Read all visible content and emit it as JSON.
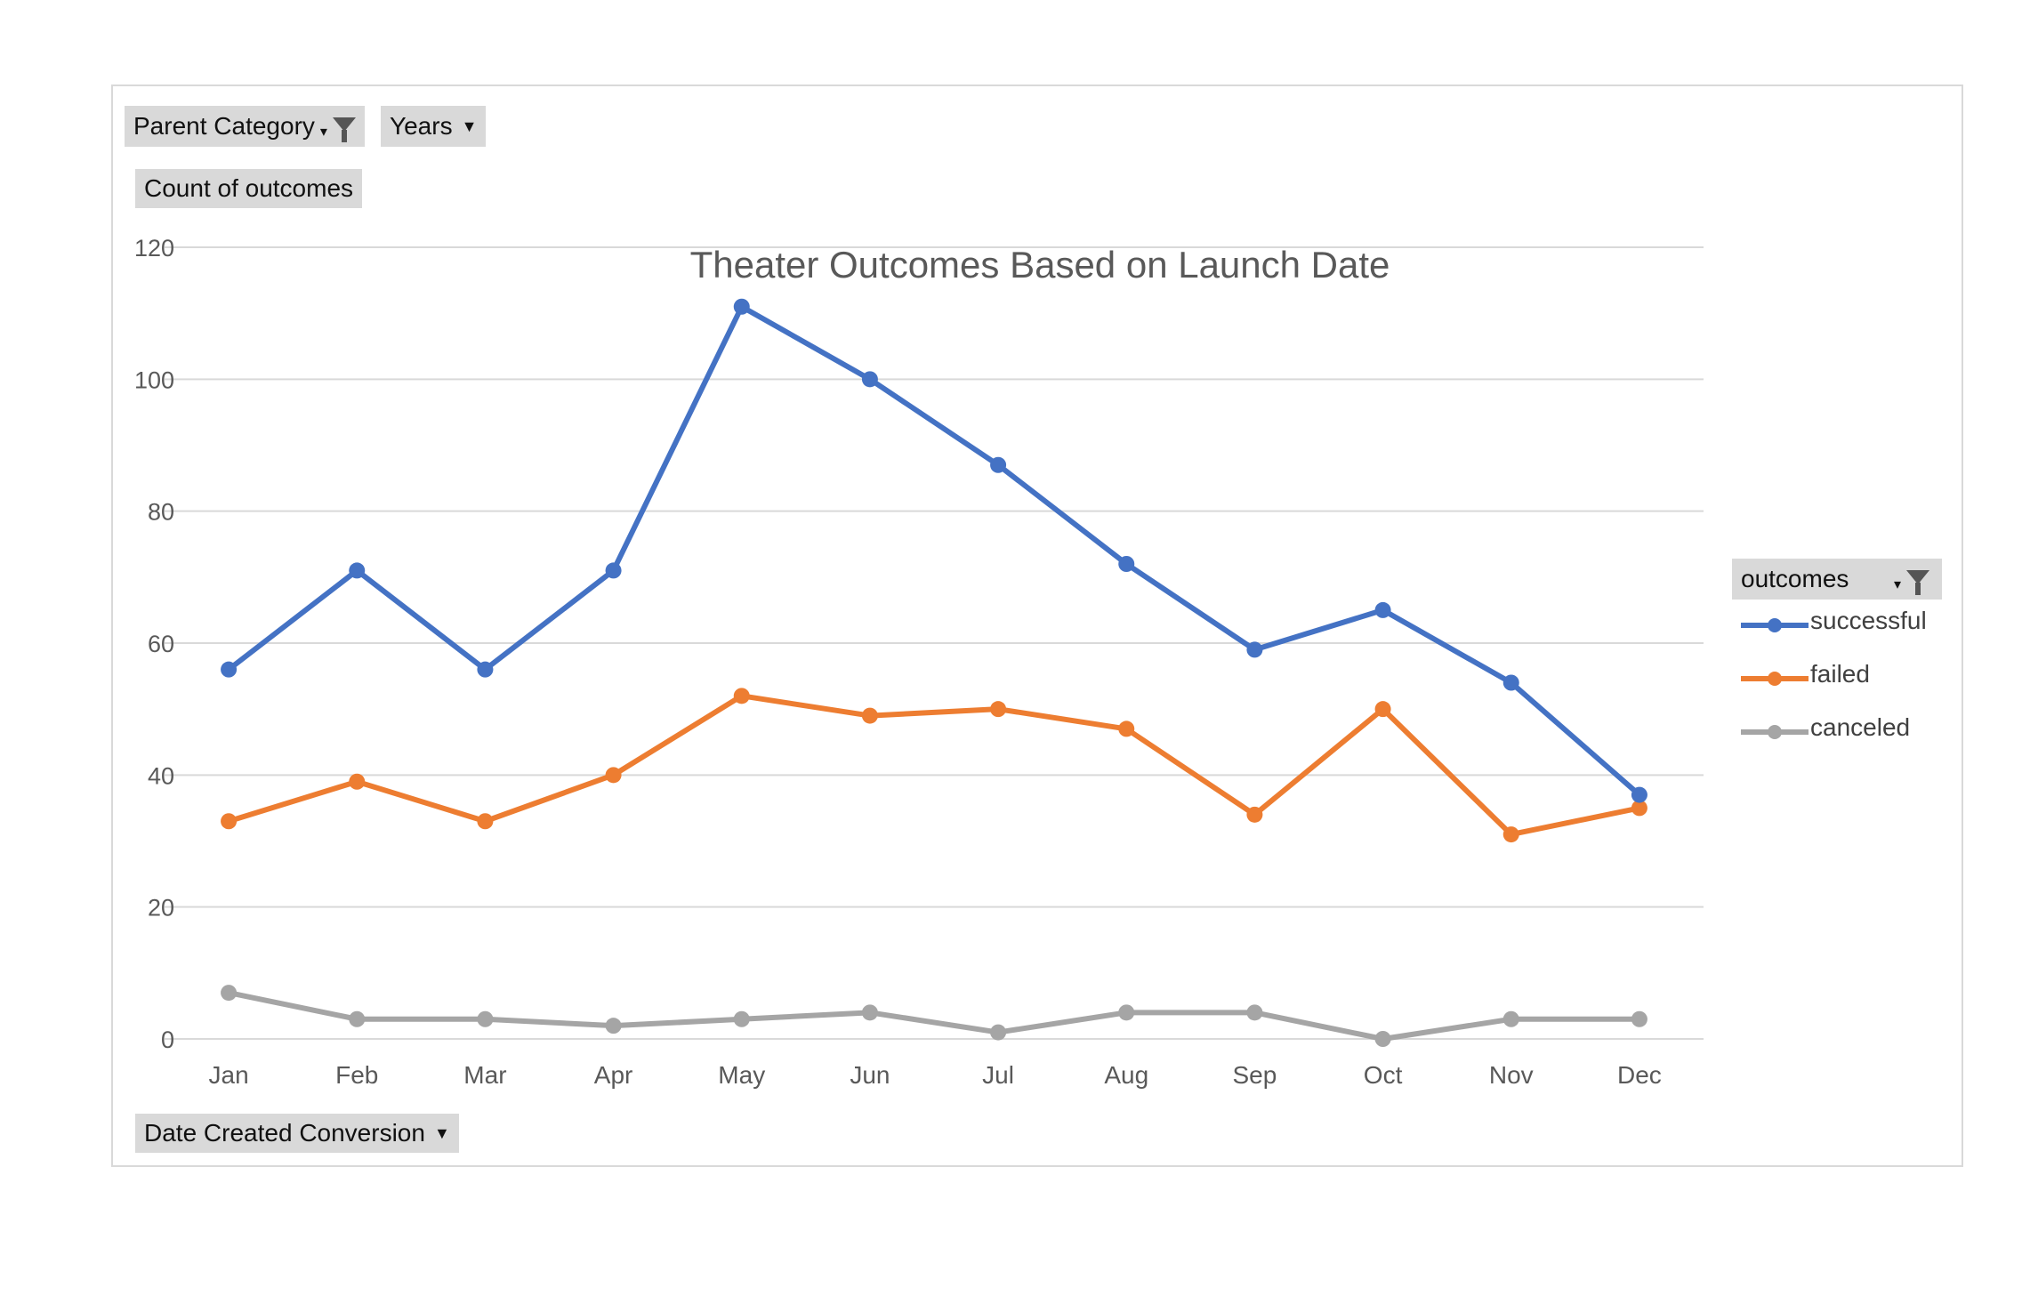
{
  "pivot": {
    "filters": {
      "parent_category_label": "Parent Category",
      "years_label": "Years"
    },
    "values_label": "Count of outcomes",
    "axis_field_label": "Date Created Conversion",
    "legend_field_label": "outcomes"
  },
  "colors": {
    "successful": "#4472c4",
    "failed": "#ed7d31",
    "canceled": "#a5a5a5",
    "gridline": "#d9d9d9",
    "axis_text": "#595959"
  },
  "chart_data": {
    "type": "line",
    "title": "Theater Outcomes Based on Launch Date",
    "categories": [
      "Jan",
      "Feb",
      "Mar",
      "Apr",
      "May",
      "Jun",
      "Jul",
      "Aug",
      "Sep",
      "Oct",
      "Nov",
      "Dec"
    ],
    "series": [
      {
        "name": "successful",
        "values": [
          56,
          71,
          56,
          71,
          111,
          100,
          87,
          72,
          59,
          65,
          54,
          37
        ]
      },
      {
        "name": "failed",
        "values": [
          33,
          39,
          33,
          40,
          52,
          49,
          50,
          47,
          34,
          50,
          31,
          35
        ]
      },
      {
        "name": "canceled",
        "values": [
          7,
          3,
          3,
          2,
          3,
          4,
          1,
          4,
          4,
          0,
          3,
          3
        ]
      }
    ],
    "ylim": [
      0,
      120
    ],
    "yticks": [
      0,
      20,
      40,
      60,
      80,
      100,
      120
    ],
    "grid": true,
    "legend_position": "right",
    "markers": true
  }
}
